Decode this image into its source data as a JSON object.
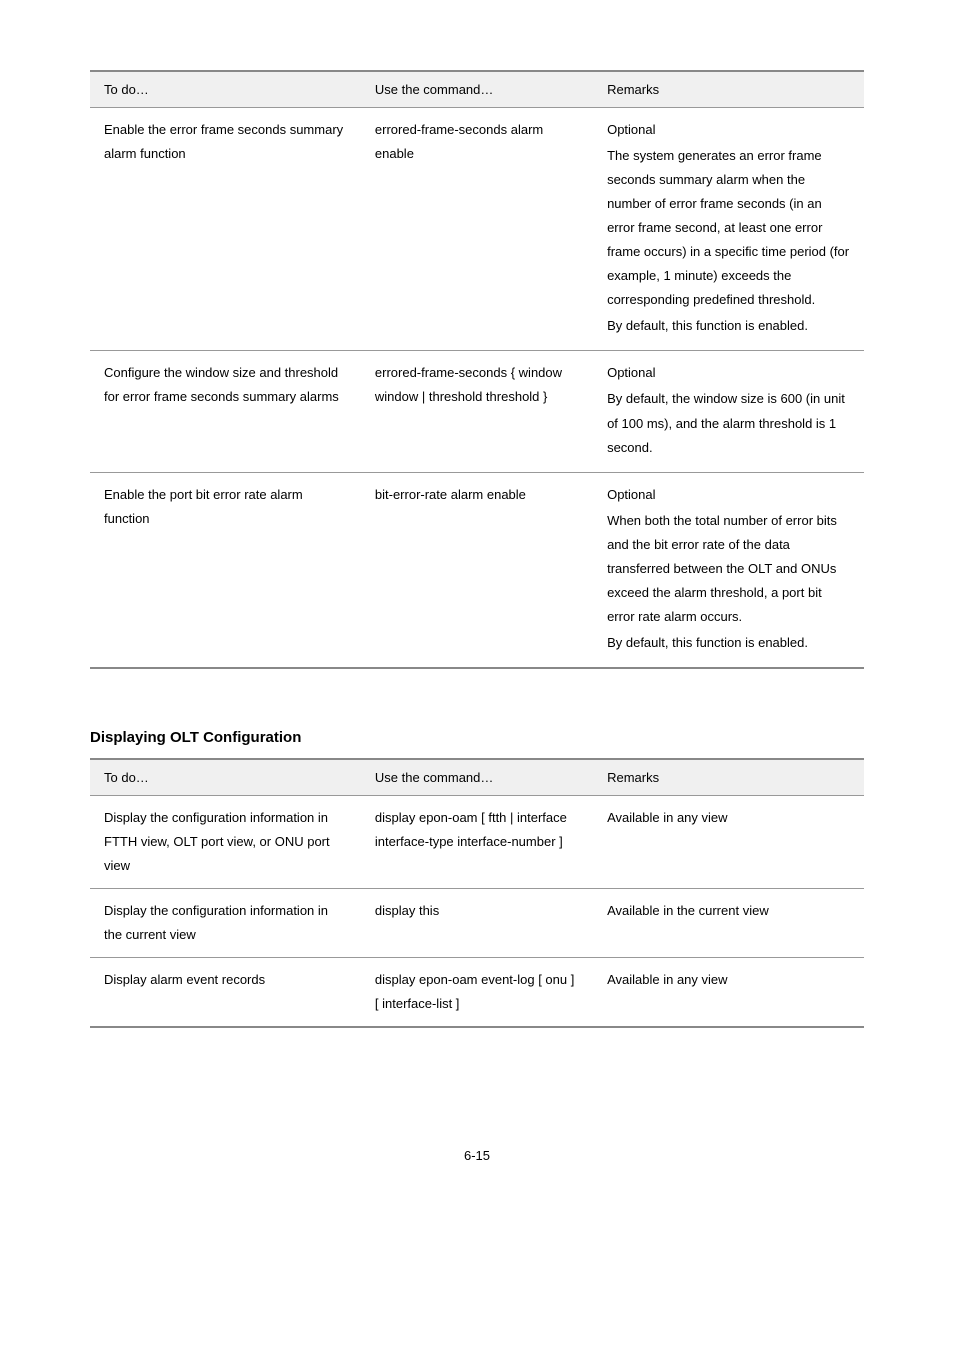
{
  "table1": {
    "text_color": "#000000",
    "header_bg": "#f0f0f0",
    "border_color": "#999999",
    "font_size_body": 13,
    "line_height": 1.85,
    "col_widths_pct": [
      35,
      30,
      35
    ],
    "headers": [
      "To do…",
      "Use the command…",
      "Remarks"
    ],
    "rows": [
      {
        "c1": "Enable the error frame seconds summary alarm function",
        "c2": "errored-frame-seconds alarm enable",
        "c3_p1": "Optional",
        "c3_p2": "The system generates an error frame seconds summary alarm when the number of error frame seconds (in an error frame second, at least one error frame occurs) in a specific time period (for example, 1 minute) exceeds the corresponding predefined threshold.",
        "c3_p3": "By default, this function is enabled."
      },
      {
        "c1": "Configure the window size and threshold for error frame seconds summary alarms",
        "c2": "errored-frame-seconds { window window | threshold threshold }",
        "c3_p1": "Optional",
        "c3_p2": "By default, the window size is 600 (in unit of 100 ms), and the alarm threshold is 1 second.",
        "c3_p3": ""
      },
      {
        "c1": "Enable the port bit error rate alarm function",
        "c2": "bit-error-rate alarm enable",
        "c3_p1": "Optional",
        "c3_p2": "When both the total number of error bits and the bit error rate of the data transferred between the OLT and ONUs exceed the alarm threshold, a port bit error rate alarm occurs.",
        "c3_p3": "By default, this function is enabled."
      }
    ]
  },
  "heading2": "Displaying OLT Configuration",
  "table2": {
    "text_color": "#000000",
    "header_bg": "#f0f0f0",
    "border_color": "#999999",
    "font_size_body": 13,
    "line_height": 1.85,
    "col_widths_pct": [
      35,
      30,
      35
    ],
    "headers": [
      "To do…",
      "Use the command…",
      "Remarks"
    ],
    "rows": [
      {
        "c1": "Display the configuration information in FTTH view, OLT port view, or ONU port view",
        "c2": "display epon-oam [ ftth | interface interface-type interface-number ]",
        "c3": "Available in any view"
      },
      {
        "c1": "Display the configuration information in the current view",
        "c2": "display this",
        "c3": "Available in the current view"
      },
      {
        "c1": "Display alarm event records",
        "c2": "display epon-oam event-log [ onu ] [ interface-list ]",
        "c3": "Available in any view"
      }
    ]
  },
  "page_number": "6-15"
}
